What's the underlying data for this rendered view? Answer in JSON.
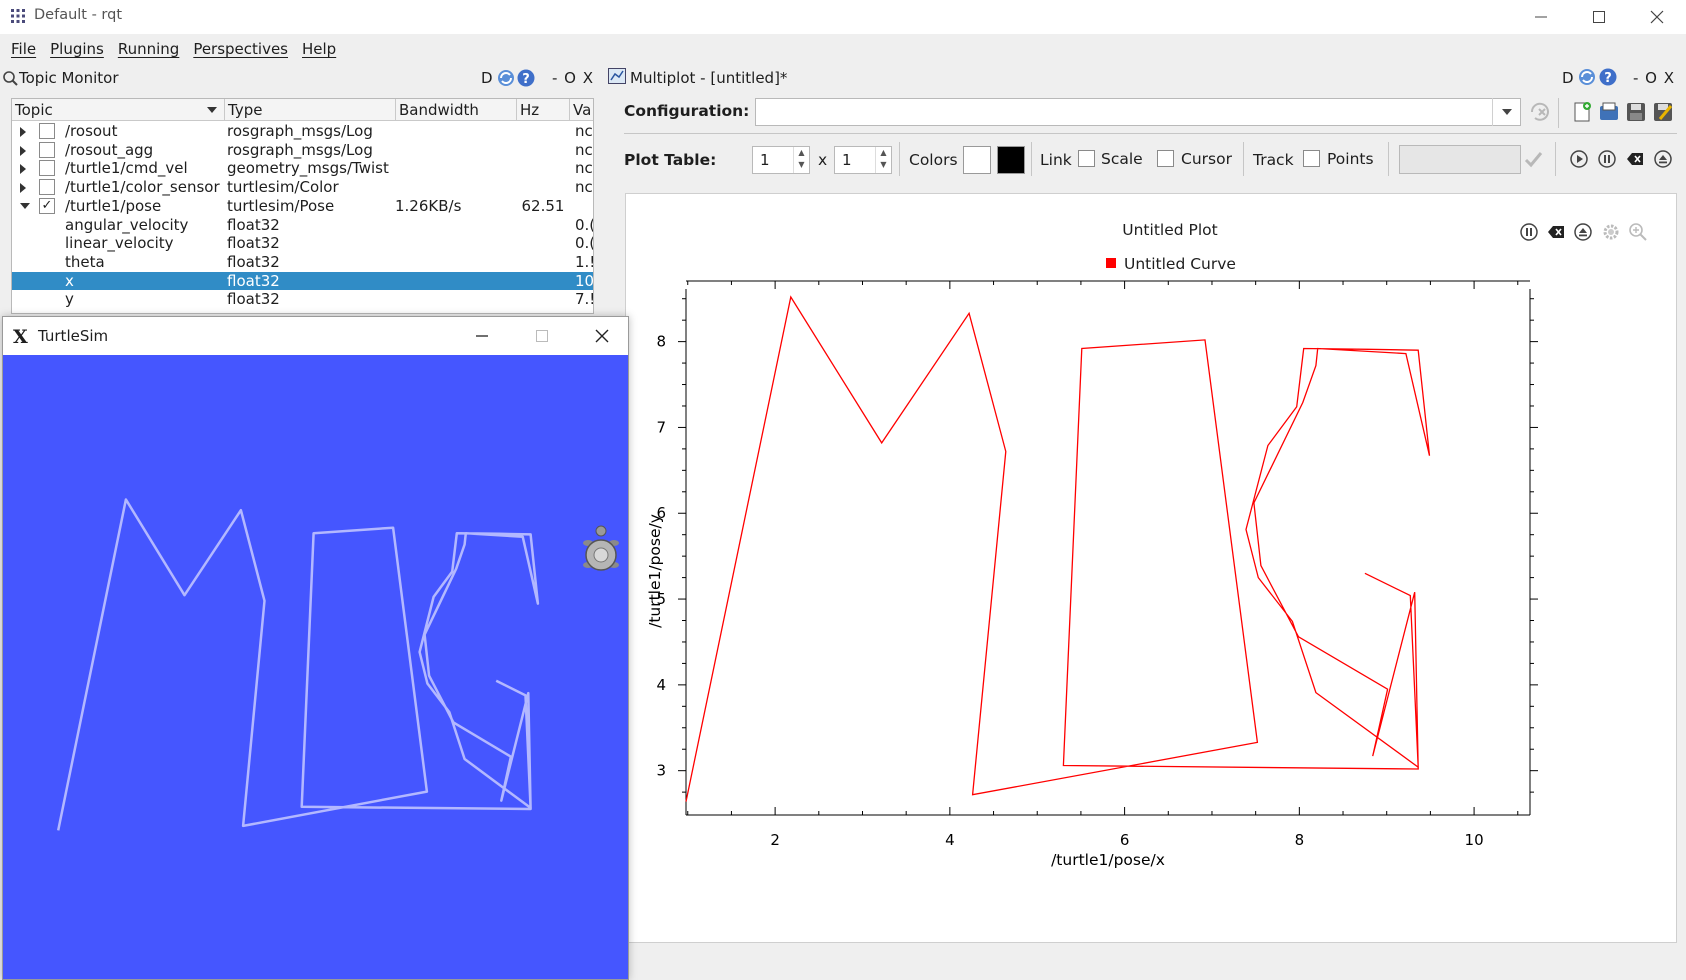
{
  "window": {
    "title": "Default - rqt"
  },
  "menu": [
    "File",
    "Plugins",
    "Running",
    "Perspectives",
    "Help"
  ],
  "topic_monitor": {
    "title": "Topic Monitor",
    "controls": "D",
    "dock_controls": "- O X",
    "columns": [
      "Topic",
      "Type",
      "Bandwidth",
      "Hz",
      "Va"
    ],
    "rows": [
      {
        "topic": "/rosout",
        "type": "rosgraph_msgs/Log",
        "bandwidth": "",
        "hz": "",
        "value": "nc",
        "expander": "right",
        "checked": false,
        "indent": 0,
        "selected": false
      },
      {
        "topic": "/rosout_agg",
        "type": "rosgraph_msgs/Log",
        "bandwidth": "",
        "hz": "",
        "value": "nc",
        "expander": "right",
        "checked": false,
        "indent": 0,
        "selected": false
      },
      {
        "topic": "/turtle1/cmd_vel",
        "type": "geometry_msgs/Twist",
        "bandwidth": "",
        "hz": "",
        "value": "nc",
        "expander": "right",
        "checked": false,
        "indent": 0,
        "selected": false
      },
      {
        "topic": "/turtle1/color_sensor",
        "type": "turtlesim/Color",
        "bandwidth": "",
        "hz": "",
        "value": "nc",
        "expander": "right",
        "checked": false,
        "indent": 0,
        "selected": false
      },
      {
        "topic": "/turtle1/pose",
        "type": "turtlesim/Pose",
        "bandwidth": "1.26KB/s",
        "hz": "62.51",
        "value": "",
        "expander": "down",
        "checked": true,
        "indent": 0,
        "selected": false
      },
      {
        "topic": "angular_velocity",
        "type": "float32",
        "bandwidth": "",
        "hz": "",
        "value": "0.(",
        "expander": "",
        "checked": null,
        "indent": 1,
        "selected": false
      },
      {
        "topic": "linear_velocity",
        "type": "float32",
        "bandwidth": "",
        "hz": "",
        "value": "0.(",
        "expander": "",
        "checked": null,
        "indent": 1,
        "selected": false
      },
      {
        "topic": "theta",
        "type": "float32",
        "bandwidth": "",
        "hz": "",
        "value": "1.!",
        "expander": "",
        "checked": null,
        "indent": 1,
        "selected": false
      },
      {
        "topic": "x",
        "type": "float32",
        "bandwidth": "",
        "hz": "",
        "value": "10",
        "expander": "",
        "checked": null,
        "indent": 1,
        "selected": true
      },
      {
        "topic": "y",
        "type": "float32",
        "bandwidth": "",
        "hz": "",
        "value": "7.!",
        "expander": "",
        "checked": null,
        "indent": 1,
        "selected": false
      }
    ]
  },
  "turtlesim": {
    "title": "TurtleSim"
  },
  "multiplot": {
    "title": "Multiplot - [untitled]*",
    "controls": "D",
    "dock_controls": "- O X",
    "configuration_label": "Configuration:",
    "configuration_value": "",
    "plot_table_label": "Plot Table:",
    "rows": "1",
    "cols": "1",
    "x_label": "x",
    "colors_label": "Colors",
    "link_label": "Link",
    "scale_label": "Scale",
    "cursor_label": "Cursor",
    "track_label": "Track",
    "points_label": "Points",
    "colors": {
      "background": "#ffffff",
      "foreground": "#000000",
      "curve": "#ff0000",
      "turtle_bg": "#4556ff",
      "turtle_trail": "#b3b8ff",
      "selection": "#308cc6"
    }
  },
  "chart_data": {
    "type": "line",
    "title": "Untitled Plot",
    "xlabel": "/turtle1/pose/x",
    "ylabel": "/turtle1/pose/y",
    "xlim": [
      0.98,
      10.64
    ],
    "ylim": [
      2.6,
      8.52
    ],
    "xticks": [
      2,
      4,
      6,
      8,
      10
    ],
    "yticks": [
      3,
      4,
      5,
      6,
      7,
      8
    ],
    "series": [
      {
        "name": "Untitled Curve",
        "color": "#ff0000",
        "x": [
          0.98,
          2.18,
          3.22,
          4.22,
          4.64,
          4.26,
          7.52,
          6.92,
          5.51,
          5.3,
          9.36,
          9.32,
          8.84,
          9.01,
          7.99,
          7.56,
          7.48,
          8.04,
          8.19,
          8.21,
          9.22,
          9.49,
          9.36,
          8.79,
          8.05,
          7.97,
          7.64,
          7.39,
          7.53,
          7.92,
          8.19,
          9.36,
          9.27,
          8.75
        ],
        "y": [
          2.64,
          8.52,
          6.82,
          8.33,
          6.72,
          2.72,
          3.33,
          8.02,
          7.92,
          3.06,
          3.02,
          5.08,
          3.17,
          3.95,
          4.56,
          5.39,
          6.12,
          7.29,
          7.72,
          7.92,
          7.86,
          6.67,
          7.9,
          7.91,
          7.92,
          7.24,
          6.79,
          5.81,
          5.25,
          4.74,
          3.91,
          3.04,
          5.04,
          5.3
        ]
      }
    ]
  }
}
